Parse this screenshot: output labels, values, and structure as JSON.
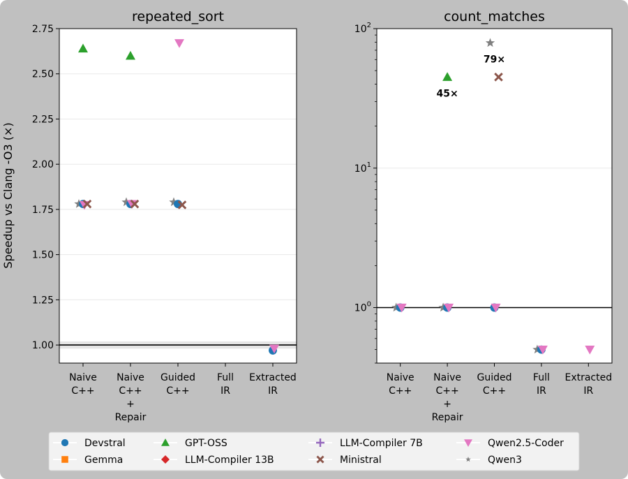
{
  "figure": {
    "ylabel": "Speedup vs Clang -O3 (×)"
  },
  "legend": {
    "placement": "bottom",
    "entries": [
      {
        "name": "Devstral",
        "color": "#1f77b4",
        "marker": "circle"
      },
      {
        "name": "Gemma",
        "color": "#ff7f0e",
        "marker": "square"
      },
      {
        "name": "GPT-OSS",
        "color": "#2ca02c",
        "marker": "triangle-up"
      },
      {
        "name": "LLM-Compiler 13B",
        "color": "#d62728",
        "marker": "diamond"
      },
      {
        "name": "LLM-Compiler 7B",
        "color": "#9467bd",
        "marker": "plus"
      },
      {
        "name": "Ministral",
        "color": "#8c564b",
        "marker": "x"
      },
      {
        "name": "Qwen2.5-Coder",
        "color": "#e377c2",
        "marker": "triangle-down"
      },
      {
        "name": "Qwen3",
        "color": "#7f7f7f",
        "marker": "star"
      }
    ]
  },
  "chart_data": [
    {
      "type": "scatter",
      "title": "repeated_sort",
      "yscale": "linear",
      "ylim": [
        0.9,
        2.75
      ],
      "yticks": [
        1.0,
        1.25,
        1.5,
        1.75,
        2.0,
        2.25,
        2.5,
        2.75
      ],
      "ytick_labels": [
        "1.00",
        "1.25",
        "1.50",
        "1.75",
        "2.00",
        "2.25",
        "2.50",
        "2.75"
      ],
      "categories": [
        [
          "Naive",
          "C++"
        ],
        [
          "Naive",
          "C++",
          "+",
          "Repair"
        ],
        [
          "Guided",
          "C++"
        ],
        [
          "Full",
          "IR"
        ],
        [
          "Extracted",
          "IR"
        ]
      ],
      "reference_line": 1.0,
      "grid": "y",
      "series": [
        {
          "name": "Devstral",
          "values": [
            1.78,
            1.78,
            1.78,
            null,
            0.97
          ]
        },
        {
          "name": "Gemma",
          "values": [
            null,
            null,
            null,
            null,
            null
          ]
        },
        {
          "name": "GPT-OSS",
          "values": [
            2.64,
            2.6,
            null,
            null,
            null
          ]
        },
        {
          "name": "LLM-Compiler 13B",
          "values": [
            null,
            null,
            null,
            null,
            null
          ]
        },
        {
          "name": "LLM-Compiler 7B",
          "values": [
            null,
            null,
            null,
            null,
            null
          ]
        },
        {
          "name": "Ministral",
          "values": [
            1.78,
            1.78,
            1.775,
            null,
            null
          ]
        },
        {
          "name": "Qwen2.5-Coder",
          "values": [
            1.775,
            1.78,
            2.67,
            null,
            0.98
          ]
        },
        {
          "name": "Qwen3",
          "values": [
            1.78,
            1.79,
            1.79,
            null,
            null
          ]
        }
      ],
      "annotations": []
    },
    {
      "type": "scatter",
      "title": "count_matches",
      "yscale": "log",
      "ylim": [
        0.4,
        100
      ],
      "yticks": [
        1,
        10,
        100
      ],
      "ytick_labels": [
        {
          "base": "10",
          "exp": "0"
        },
        {
          "base": "10",
          "exp": "1"
        },
        {
          "base": "10",
          "exp": "2"
        }
      ],
      "categories": [
        [
          "Naive",
          "C++"
        ],
        [
          "Naive",
          "C++",
          "+",
          "Repair"
        ],
        [
          "Guided",
          "C++"
        ],
        [
          "Full",
          "IR"
        ],
        [
          "Extracted",
          "IR"
        ]
      ],
      "reference_line": 1.0,
      "grid": "y",
      "series": [
        {
          "name": "Devstral",
          "values": [
            1.0,
            1.0,
            1.0,
            0.5,
            null
          ]
        },
        {
          "name": "Gemma",
          "values": [
            null,
            null,
            null,
            null,
            null
          ]
        },
        {
          "name": "GPT-OSS",
          "values": [
            null,
            45,
            null,
            null,
            null
          ]
        },
        {
          "name": "LLM-Compiler 13B",
          "values": [
            null,
            null,
            null,
            null,
            null
          ]
        },
        {
          "name": "LLM-Compiler 7B",
          "values": [
            null,
            null,
            null,
            null,
            null
          ]
        },
        {
          "name": "Ministral",
          "values": [
            null,
            null,
            45,
            null,
            null
          ]
        },
        {
          "name": "Qwen2.5-Coder",
          "values": [
            1.0,
            1.0,
            1.0,
            0.5,
            0.5
          ]
        },
        {
          "name": "Qwen3",
          "values": [
            1.0,
            1.0,
            79,
            0.5,
            null
          ]
        }
      ],
      "annotations": [
        {
          "text": "45×",
          "x": 1,
          "y": 45,
          "position": "below"
        },
        {
          "text": "79×",
          "x": 2,
          "y": 79,
          "position": "below"
        }
      ]
    }
  ]
}
